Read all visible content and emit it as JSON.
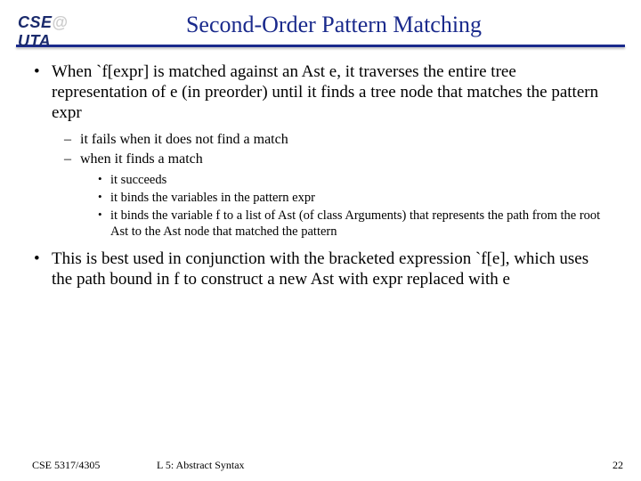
{
  "logo": {
    "cse": "CSE",
    "uta": "UTA"
  },
  "title": "Second-Order Pattern Matching",
  "bullets": {
    "b1": "When `f[expr] is matched against an Ast  e, it traverses the entire tree representation of e (in preorder) until it finds a tree node that matches the pattern expr",
    "b1_1": "it fails when it does not find a match",
    "b1_2": "when it finds a match",
    "b1_2_1": "it succeeds",
    "b1_2_2": "it binds the variables in the pattern expr",
    "b1_2_3": "it binds the variable f to a list of Ast (of class Arguments) that represents the path from the root Ast to the Ast node that matched the pattern",
    "b2": "This is best used in conjunction with the bracketed expression `f[e], which uses the path bound in f to construct a new Ast with expr replaced with e"
  },
  "footer": {
    "course": "CSE 5317/4305",
    "lecture": "L 5: Abstract Syntax",
    "page": "22"
  },
  "colors": {
    "title_color": "#1a2a8c",
    "underline_color": "#1a2a8c",
    "logo_color": "#1a2a6c",
    "text_color": "#000000",
    "background": "#ffffff"
  },
  "fonts": {
    "title_size_pt": 20,
    "body_size_pt": 14,
    "sub_size_pt": 12,
    "subsub_size_pt": 11,
    "footer_size_pt": 9
  }
}
